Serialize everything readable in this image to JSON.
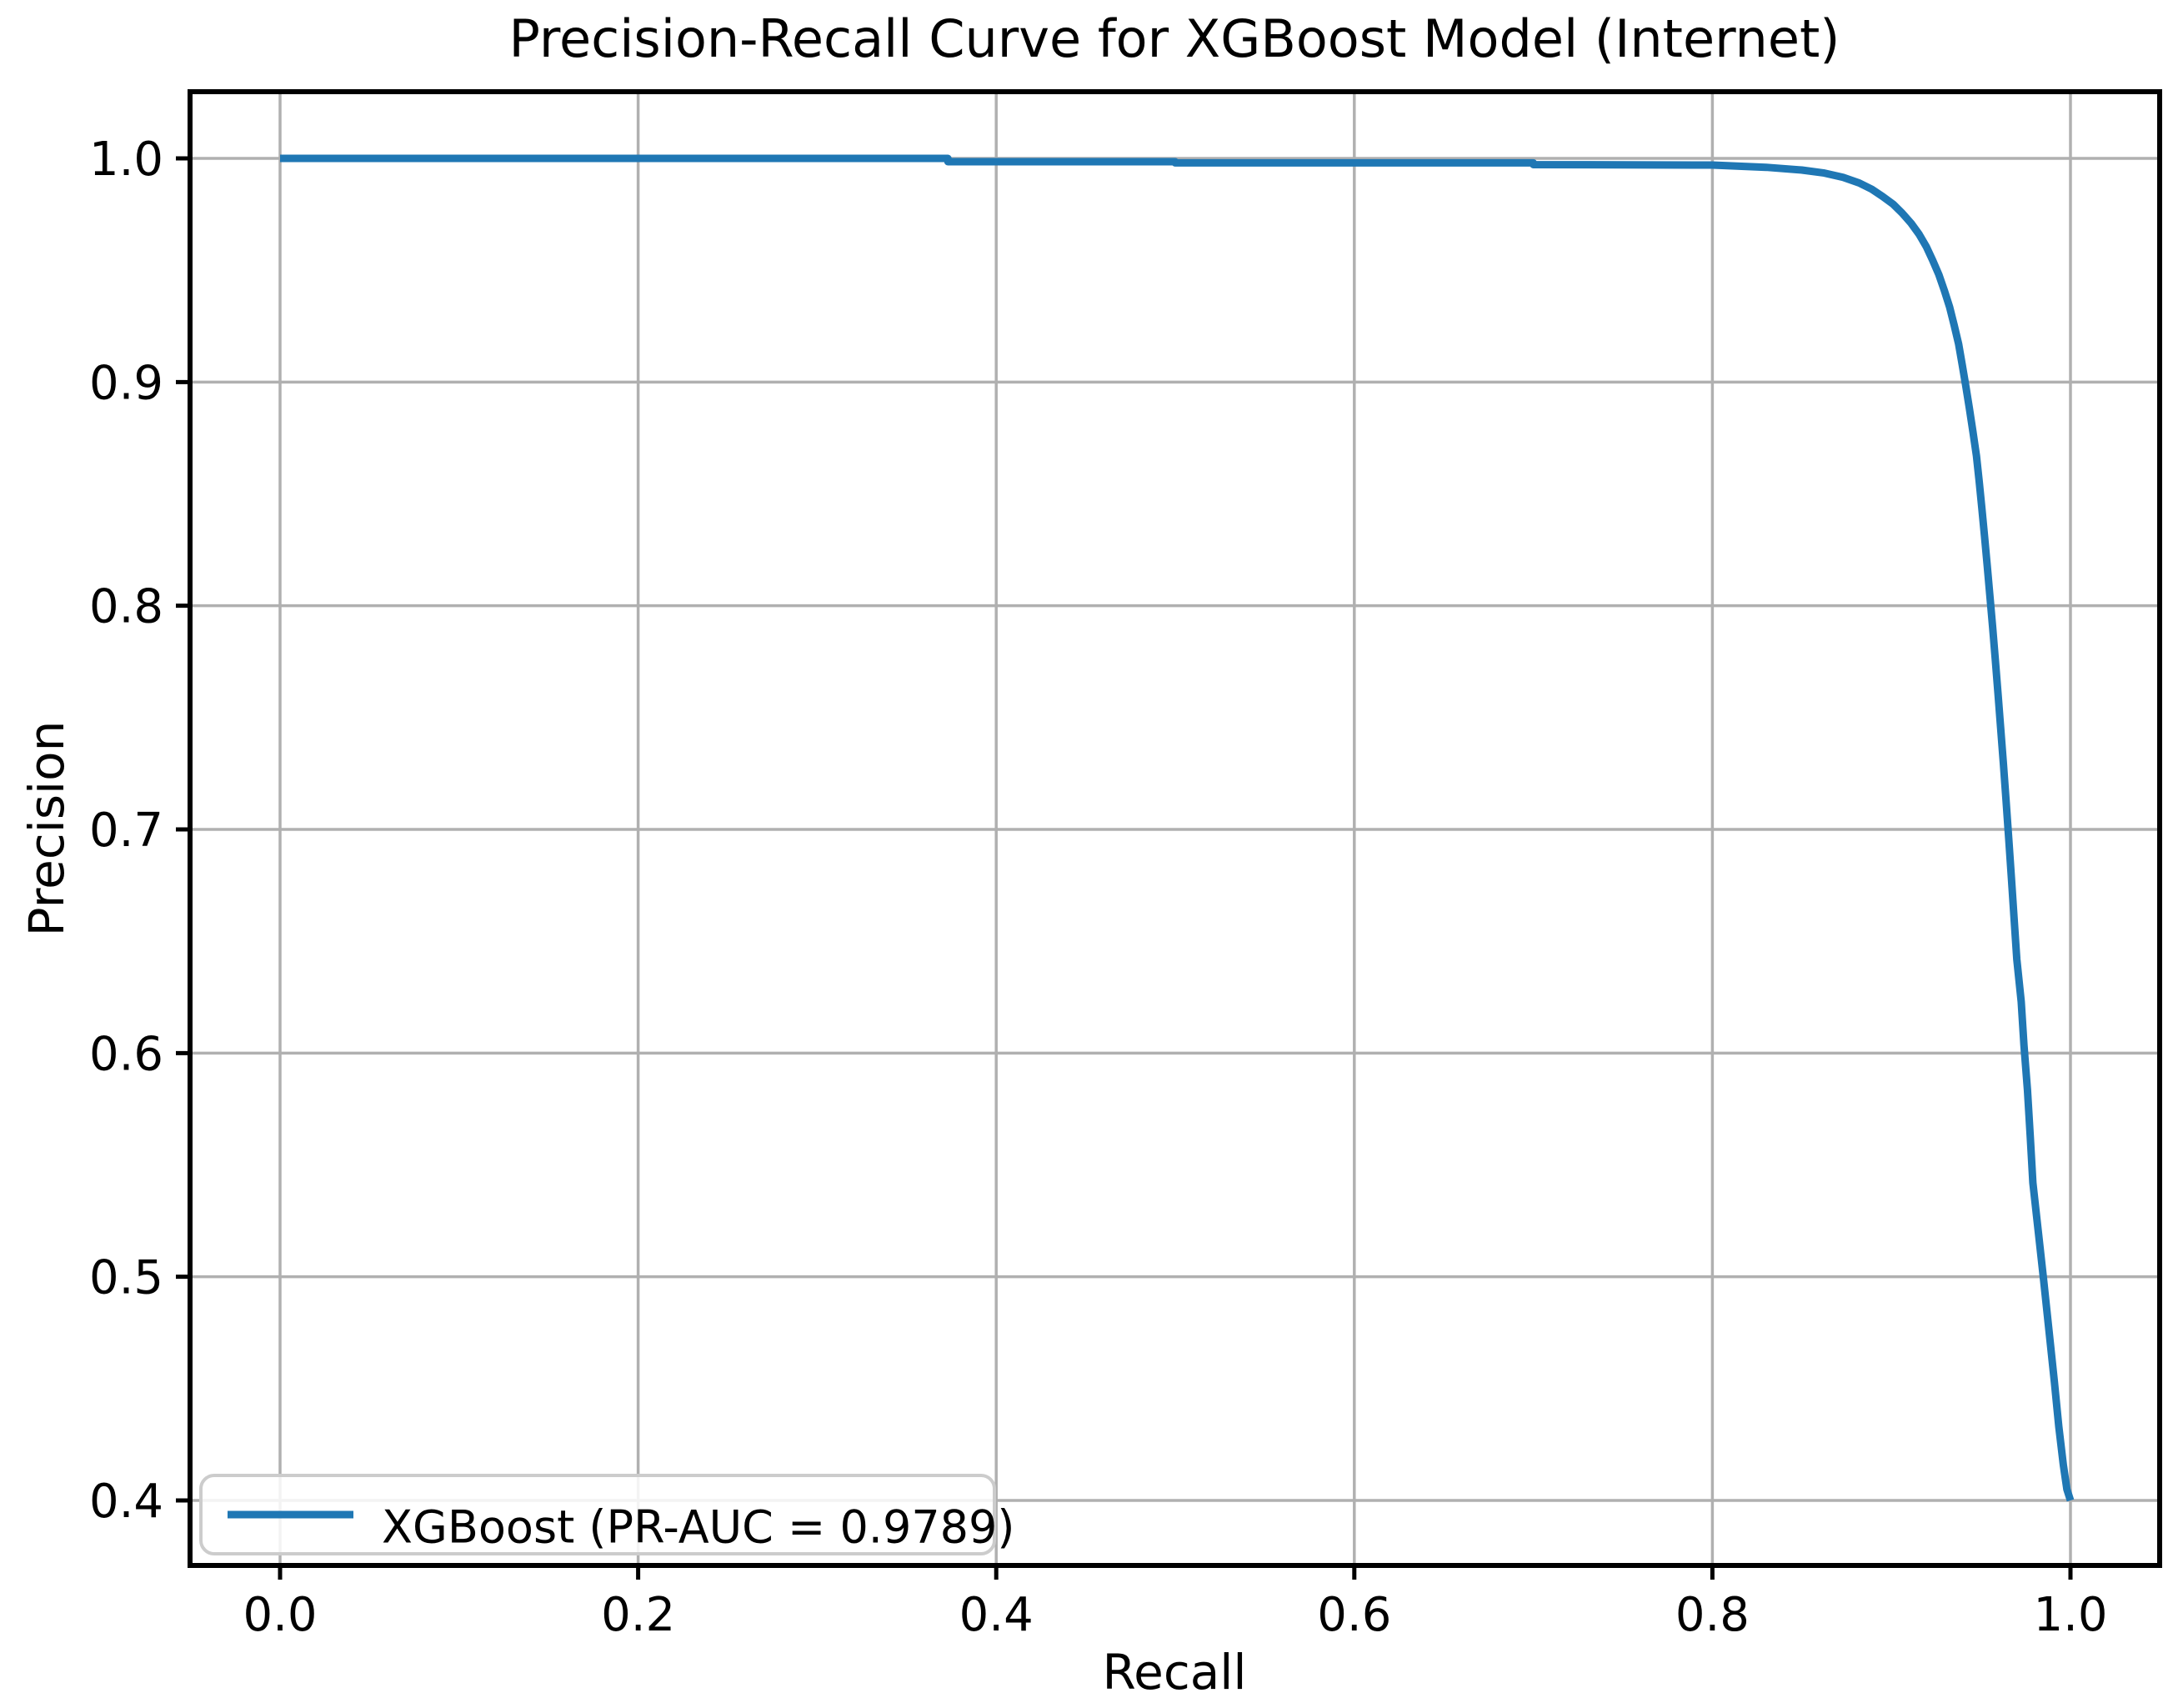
{
  "figure": {
    "title": "Precision-Recall Curve for XGBoost Model (Internet)",
    "xlabel": "Recall",
    "ylabel": "Precision"
  },
  "legend": {
    "position": "lower left",
    "entries": [
      {
        "label": "XGBoost (PR-AUC = 0.9789)",
        "color": "#1f77b4"
      }
    ]
  },
  "colors": {
    "curve": "#1f77b4",
    "grid": "#b0b0b0",
    "spine": "#000000",
    "background": "#ffffff",
    "legend_border": "#cccccc"
  },
  "chart_data": {
    "type": "line",
    "title": "Precision-Recall Curve for XGBoost Model (Internet)",
    "xlabel": "Recall",
    "ylabel": "Precision",
    "xlim": [
      -0.05,
      1.05
    ],
    "ylim": [
      0.371,
      1.03
    ],
    "x_ticks": [
      0.0,
      0.2,
      0.4,
      0.6,
      0.8,
      1.0
    ],
    "y_ticks": [
      0.4,
      0.5,
      0.6,
      0.7,
      0.8,
      0.9,
      1.0
    ],
    "grid": true,
    "legend_position": "lower left",
    "series": [
      {
        "name": "XGBoost (PR-AUC = 0.9789)",
        "color": "#1f77b4",
        "pr_auc": 0.9789,
        "points": [
          [
            0.0,
            1.0
          ],
          [
            0.373,
            1.0
          ],
          [
            0.373,
            0.9985
          ],
          [
            0.5,
            0.9985
          ],
          [
            0.5,
            0.998
          ],
          [
            0.7,
            0.998
          ],
          [
            0.7,
            0.9972
          ],
          [
            0.8,
            0.997
          ],
          [
            0.83,
            0.996
          ],
          [
            0.85,
            0.9948
          ],
          [
            0.862,
            0.9935
          ],
          [
            0.873,
            0.9915
          ],
          [
            0.882,
            0.989
          ],
          [
            0.889,
            0.9862
          ],
          [
            0.895,
            0.983
          ],
          [
            0.901,
            0.9795
          ],
          [
            0.906,
            0.9755
          ],
          [
            0.911,
            0.971
          ],
          [
            0.9155,
            0.966
          ],
          [
            0.9195,
            0.9605
          ],
          [
            0.923,
            0.9545
          ],
          [
            0.9265,
            0.948
          ],
          [
            0.9295,
            0.941
          ],
          [
            0.9325,
            0.9335
          ],
          [
            0.935,
            0.9255
          ],
          [
            0.9375,
            0.917
          ],
          [
            0.9395,
            0.908
          ],
          [
            0.9415,
            0.8985
          ],
          [
            0.9435,
            0.8885
          ],
          [
            0.9455,
            0.878
          ],
          [
            0.9475,
            0.867
          ],
          [
            0.949,
            0.8555
          ],
          [
            0.9505,
            0.8435
          ],
          [
            0.952,
            0.831
          ],
          [
            0.9535,
            0.818
          ],
          [
            0.955,
            0.8045
          ],
          [
            0.9565,
            0.7905
          ],
          [
            0.958,
            0.776
          ],
          [
            0.9595,
            0.761
          ],
          [
            0.961,
            0.7455
          ],
          [
            0.9625,
            0.7295
          ],
          [
            0.964,
            0.713
          ],
          [
            0.9655,
            0.696
          ],
          [
            0.967,
            0.6785
          ],
          [
            0.9685,
            0.6605
          ],
          [
            0.97,
            0.642
          ],
          [
            0.9725,
            0.623
          ],
          [
            0.974,
            0.6035
          ],
          [
            0.976,
            0.5835
          ],
          [
            0.9775,
            0.563
          ],
          [
            0.979,
            0.542
          ],
          [
            0.982,
            0.5205
          ],
          [
            0.985,
            0.4985
          ],
          [
            0.988,
            0.476
          ],
          [
            0.991,
            0.453
          ],
          [
            0.9935,
            0.433
          ],
          [
            0.996,
            0.416
          ],
          [
            0.998,
            0.405
          ],
          [
            1.0,
            0.4
          ]
        ]
      }
    ]
  }
}
